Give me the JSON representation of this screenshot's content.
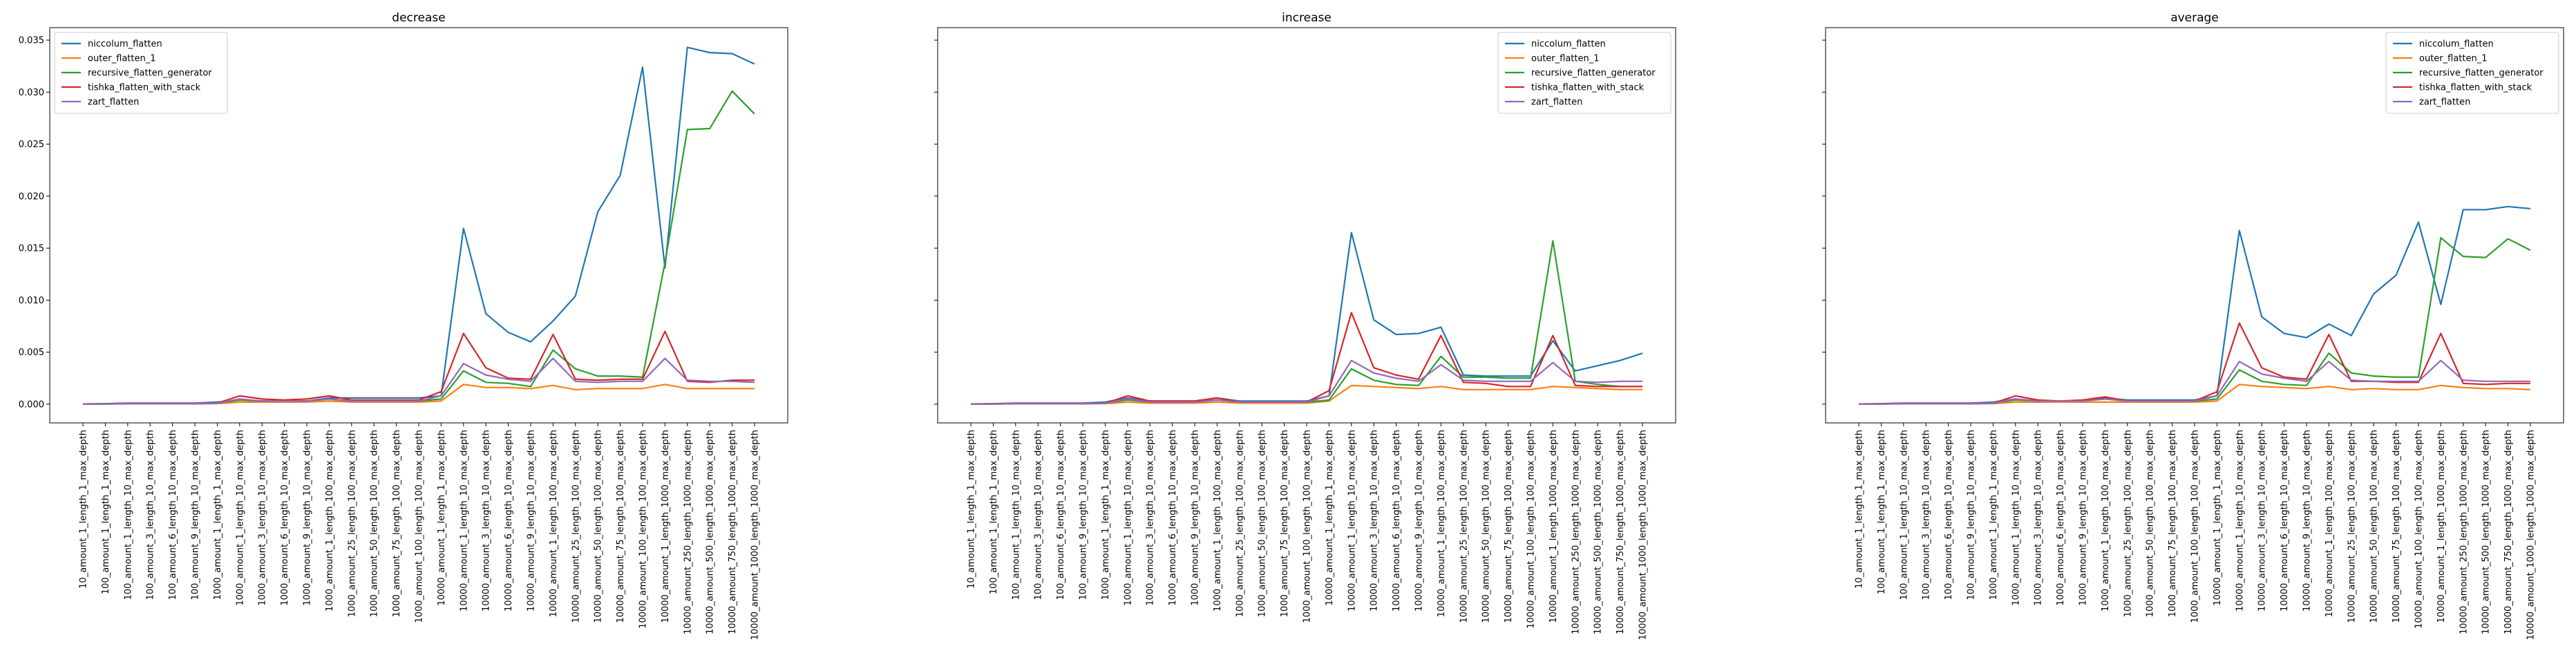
{
  "chart_data": [
    {
      "type": "line",
      "title": "decrease",
      "xlabel": "",
      "ylabel": "",
      "ylim": [
        -0.0018,
        0.0362
      ],
      "yticks": [
        "0.000",
        "0.005",
        "0.010",
        "0.015",
        "0.020",
        "0.025",
        "0.030",
        "0.035"
      ],
      "show_yticklabels": true,
      "legend": "top-left",
      "categories": [
        "10_amount_1_length_1_max_depth",
        "100_amount_1_length_1_max_depth",
        "100_amount_1_length_10_max_depth",
        "100_amount_3_length_10_max_depth",
        "100_amount_6_length_10_max_depth",
        "100_amount_9_length_10_max_depth",
        "1000_amount_1_length_1_max_depth",
        "1000_amount_1_length_10_max_depth",
        "1000_amount_3_length_10_max_depth",
        "1000_amount_6_length_10_max_depth",
        "1000_amount_9_length_10_max_depth",
        "1000_amount_1_length_100_max_depth",
        "1000_amount_25_length_100_max_depth",
        "1000_amount_50_length_100_max_depth",
        "1000_amount_75_length_100_max_depth",
        "1000_amount_100_length_100_max_depth",
        "10000_amount_1_length_1_max_depth",
        "10000_amount_1_length_10_max_depth",
        "10000_amount_3_length_10_max_depth",
        "10000_amount_6_length_10_max_depth",
        "10000_amount_9_length_10_max_depth",
        "10000_amount_1_length_100_max_depth",
        "10000_amount_25_length_100_max_depth",
        "10000_amount_50_length_100_max_depth",
        "10000_amount_75_length_100_max_depth",
        "10000_amount_100_length_100_max_depth",
        "10000_amount_1_length_1000_max_depth",
        "10000_amount_250_length_1000_max_depth",
        "10000_amount_500_length_1000_max_depth",
        "10000_amount_750_length_1000_max_depth",
        "10000_amount_1000_length_1000_max_depth"
      ],
      "series": [
        {
          "name": "niccolum_flatten",
          "color": "#1f77b4",
          "values": [
            2e-05,
            5e-05,
            0.0001,
            0.0001,
            0.0001,
            0.0001,
            0.0002,
            0.0004,
            0.0003,
            0.0003,
            0.0003,
            0.0006,
            0.0006,
            0.0006,
            0.0006,
            0.0006,
            0.0008,
            0.0169,
            0.0087,
            0.0069,
            0.006,
            0.008,
            0.0104,
            0.0185,
            0.022,
            0.0324,
            0.0131,
            0.0343,
            0.0338,
            0.0337,
            0.0327
          ]
        },
        {
          "name": "outer_flatten_1",
          "color": "#ff7f0e",
          "values": [
            1e-05,
            2e-05,
            3e-05,
            3e-05,
            3e-05,
            3e-05,
            5e-05,
            0.0002,
            0.0002,
            0.0002,
            0.0002,
            0.0003,
            0.0002,
            0.0002,
            0.0002,
            0.0002,
            0.0003,
            0.0019,
            0.0016,
            0.0016,
            0.0015,
            0.0018,
            0.0014,
            0.0015,
            0.0015,
            0.0015,
            0.0019,
            0.0015,
            0.0015,
            0.0015,
            0.0015
          ]
        },
        {
          "name": "recursive_flatten_generator",
          "color": "#2ca02c",
          "values": [
            1e-05,
            2e-05,
            5e-05,
            5e-05,
            5e-05,
            5e-05,
            0.0001,
            0.0004,
            0.0003,
            0.0003,
            0.0003,
            0.0005,
            0.0003,
            0.0003,
            0.0003,
            0.0003,
            0.0005,
            0.0032,
            0.0021,
            0.002,
            0.0017,
            0.0052,
            0.0034,
            0.0027,
            0.0027,
            0.0026,
            0.0136,
            0.0264,
            0.0265,
            0.0301,
            0.0279
          ]
        },
        {
          "name": "tishka_flatten_with_stack",
          "color": "#d62728",
          "values": [
            1e-05,
            3e-05,
            7e-05,
            7e-05,
            7e-05,
            7e-05,
            0.0001,
            0.0008,
            0.0005,
            0.0004,
            0.0005,
            0.0008,
            0.0004,
            0.0004,
            0.0004,
            0.0004,
            0.0012,
            0.0068,
            0.0035,
            0.0025,
            0.0024,
            0.0067,
            0.0024,
            0.0023,
            0.0024,
            0.0024,
            0.007,
            0.0022,
            0.0021,
            0.0023,
            0.0023
          ]
        },
        {
          "name": "zart_flatten",
          "color": "#9467bd",
          "values": [
            1e-05,
            2e-05,
            5e-05,
            5e-05,
            5e-05,
            5e-05,
            0.0001,
            0.0005,
            0.0003,
            0.0003,
            0.0003,
            0.0005,
            0.0003,
            0.0003,
            0.0003,
            0.0003,
            0.0008,
            0.0039,
            0.0028,
            0.0024,
            0.0022,
            0.0044,
            0.0022,
            0.0021,
            0.0022,
            0.0022,
            0.0044,
            0.0023,
            0.0022,
            0.0022,
            0.0021
          ]
        }
      ]
    },
    {
      "type": "line",
      "title": "increase",
      "xlabel": "",
      "ylabel": "",
      "ylim": [
        -0.0018,
        0.0362
      ],
      "yticks": [
        "0.000",
        "0.005",
        "0.010",
        "0.015",
        "0.020",
        "0.025",
        "0.030",
        "0.035"
      ],
      "show_yticklabels": false,
      "legend": "top-right",
      "categories": [
        "10_amount_1_length_1_max_depth",
        "100_amount_1_length_1_max_depth",
        "100_amount_1_length_10_max_depth",
        "100_amount_3_length_10_max_depth",
        "100_amount_6_length_10_max_depth",
        "100_amount_9_length_10_max_depth",
        "1000_amount_1_length_1_max_depth",
        "1000_amount_1_length_10_max_depth",
        "1000_amount_3_length_10_max_depth",
        "1000_amount_6_length_10_max_depth",
        "1000_amount_9_length_10_max_depth",
        "1000_amount_1_length_100_max_depth",
        "1000_amount_25_length_100_max_depth",
        "1000_amount_50_length_100_max_depth",
        "1000_amount_75_length_100_max_depth",
        "1000_amount_100_length_100_max_depth",
        "10000_amount_1_length_1_max_depth",
        "10000_amount_1_length_10_max_depth",
        "10000_amount_3_length_10_max_depth",
        "10000_amount_6_length_10_max_depth",
        "10000_amount_9_length_10_max_depth",
        "10000_amount_1_length_100_max_depth",
        "10000_amount_25_length_100_max_depth",
        "10000_amount_50_length_100_max_depth",
        "10000_amount_75_length_100_max_depth",
        "10000_amount_100_length_100_max_depth",
        "10000_amount_1_length_1000_max_depth",
        "10000_amount_250_length_1000_max_depth",
        "10000_amount_500_length_1000_max_depth",
        "10000_amount_750_length_1000_max_depth",
        "10000_amount_1000_length_1000_max_depth"
      ],
      "series": [
        {
          "name": "niccolum_flatten",
          "color": "#1f77b4",
          "values": [
            2e-05,
            5e-05,
            0.0001,
            0.0001,
            0.0001,
            0.0001,
            0.0002,
            0.0006,
            0.0003,
            0.0003,
            0.0003,
            0.0006,
            0.0003,
            0.0003,
            0.0003,
            0.0003,
            0.0008,
            0.0165,
            0.0081,
            0.0067,
            0.0068,
            0.0074,
            0.0028,
            0.0027,
            0.0027,
            0.0027,
            0.0061,
            0.0032,
            0.0037,
            0.0042,
            0.0049
          ]
        },
        {
          "name": "outer_flatten_1",
          "color": "#ff7f0e",
          "values": [
            1e-05,
            2e-05,
            3e-05,
            3e-05,
            3e-05,
            3e-05,
            5e-05,
            0.0002,
            0.0001,
            0.0001,
            0.0001,
            0.0002,
            0.0001,
            0.0001,
            0.0001,
            0.0001,
            0.0003,
            0.0018,
            0.0017,
            0.0016,
            0.0015,
            0.0017,
            0.0014,
            0.0014,
            0.0014,
            0.0014,
            0.0017,
            0.0016,
            0.0015,
            0.0014,
            0.0014
          ]
        },
        {
          "name": "recursive_flatten_generator",
          "color": "#2ca02c",
          "values": [
            1e-05,
            2e-05,
            5e-05,
            5e-05,
            5e-05,
            5e-05,
            0.0001,
            0.0004,
            0.0002,
            0.0002,
            0.0002,
            0.0004,
            0.0002,
            0.0002,
            0.0002,
            0.0002,
            0.0004,
            0.0034,
            0.0023,
            0.0019,
            0.0018,
            0.0046,
            0.0026,
            0.0026,
            0.0025,
            0.0025,
            0.0157,
            0.0022,
            0.0019,
            0.0017,
            0.0017
          ]
        },
        {
          "name": "tishka_flatten_with_stack",
          "color": "#d62728",
          "values": [
            1e-05,
            3e-05,
            7e-05,
            7e-05,
            7e-05,
            7e-05,
            0.0001,
            0.0008,
            0.0003,
            0.0003,
            0.0003,
            0.0006,
            0.0002,
            0.0002,
            0.0002,
            0.0002,
            0.0013,
            0.0088,
            0.0035,
            0.0028,
            0.0024,
            0.0066,
            0.0021,
            0.002,
            0.0017,
            0.0017,
            0.0066,
            0.0018,
            0.0017,
            0.0017,
            0.0017
          ]
        },
        {
          "name": "zart_flatten",
          "color": "#9467bd",
          "values": [
            1e-05,
            2e-05,
            5e-05,
            5e-05,
            5e-05,
            5e-05,
            0.0001,
            0.0005,
            0.0002,
            0.0002,
            0.0002,
            0.0004,
            0.0002,
            0.0002,
            0.0002,
            0.0002,
            0.0008,
            0.0042,
            0.003,
            0.0025,
            0.0022,
            0.0038,
            0.0023,
            0.0022,
            0.0022,
            0.0022,
            0.004,
            0.0022,
            0.0021,
            0.0022,
            0.0022
          ]
        }
      ]
    },
    {
      "type": "line",
      "title": "average",
      "xlabel": "",
      "ylabel": "",
      "ylim": [
        -0.0018,
        0.0362
      ],
      "yticks": [
        "0.000",
        "0.005",
        "0.010",
        "0.015",
        "0.020",
        "0.025",
        "0.030",
        "0.035"
      ],
      "show_yticklabels": false,
      "legend": "top-right",
      "categories": [
        "10_amount_1_length_1_max_depth",
        "100_amount_1_length_1_max_depth",
        "100_amount_1_length_10_max_depth",
        "100_amount_3_length_10_max_depth",
        "100_amount_6_length_10_max_depth",
        "100_amount_9_length_10_max_depth",
        "1000_amount_1_length_1_max_depth",
        "1000_amount_1_length_10_max_depth",
        "1000_amount_3_length_10_max_depth",
        "1000_amount_6_length_10_max_depth",
        "1000_amount_9_length_10_max_depth",
        "1000_amount_1_length_100_max_depth",
        "1000_amount_25_length_100_max_depth",
        "1000_amount_50_length_100_max_depth",
        "1000_amount_75_length_100_max_depth",
        "1000_amount_100_length_100_max_depth",
        "10000_amount_1_length_1_max_depth",
        "10000_amount_1_length_10_max_depth",
        "10000_amount_3_length_10_max_depth",
        "10000_amount_6_length_10_max_depth",
        "10000_amount_9_length_10_max_depth",
        "10000_amount_1_length_100_max_depth",
        "10000_amount_25_length_100_max_depth",
        "10000_amount_50_length_100_max_depth",
        "10000_amount_75_length_100_max_depth",
        "10000_amount_100_length_100_max_depth",
        "10000_amount_1_length_1000_max_depth",
        "10000_amount_250_length_1000_max_depth",
        "10000_amount_500_length_1000_max_depth",
        "10000_amount_750_length_1000_max_depth",
        "10000_amount_1000_length_1000_max_depth"
      ],
      "series": [
        {
          "name": "niccolum_flatten",
          "color": "#1f77b4",
          "values": [
            2e-05,
            5e-05,
            0.0001,
            0.0001,
            0.0001,
            0.0001,
            0.0002,
            0.0005,
            0.0003,
            0.0003,
            0.0003,
            0.0006,
            0.0004,
            0.0004,
            0.0004,
            0.0004,
            0.0008,
            0.0167,
            0.0084,
            0.0068,
            0.0064,
            0.0077,
            0.0066,
            0.0106,
            0.0124,
            0.0175,
            0.0096,
            0.0187,
            0.0187,
            0.019,
            0.0188
          ]
        },
        {
          "name": "outer_flatten_1",
          "color": "#ff7f0e",
          "values": [
            1e-05,
            2e-05,
            3e-05,
            3e-05,
            3e-05,
            3e-05,
            5e-05,
            0.0002,
            0.0002,
            0.0002,
            0.0002,
            0.0002,
            0.0002,
            0.0002,
            0.0002,
            0.0002,
            0.0003,
            0.0019,
            0.0017,
            0.0016,
            0.0015,
            0.0017,
            0.0014,
            0.0015,
            0.0014,
            0.0014,
            0.0018,
            0.0016,
            0.0015,
            0.0015,
            0.0014
          ]
        },
        {
          "name": "recursive_flatten_generator",
          "color": "#2ca02c",
          "values": [
            1e-05,
            2e-05,
            5e-05,
            5e-05,
            5e-05,
            5e-05,
            0.0001,
            0.0004,
            0.0003,
            0.0003,
            0.0003,
            0.0005,
            0.0003,
            0.0003,
            0.0003,
            0.0003,
            0.0005,
            0.0033,
            0.0022,
            0.0019,
            0.0018,
            0.0049,
            0.003,
            0.0027,
            0.0026,
            0.0026,
            0.016,
            0.0142,
            0.0141,
            0.0159,
            0.0148
          ]
        },
        {
          "name": "tishka_flatten_with_stack",
          "color": "#d62728",
          "values": [
            1e-05,
            3e-05,
            7e-05,
            7e-05,
            7e-05,
            7e-05,
            0.0001,
            0.0008,
            0.0004,
            0.0003,
            0.0004,
            0.0007,
            0.0003,
            0.0003,
            0.0003,
            0.0003,
            0.0012,
            0.0078,
            0.0035,
            0.0026,
            0.0024,
            0.0067,
            0.0022,
            0.0022,
            0.0021,
            0.0021,
            0.0068,
            0.002,
            0.0019,
            0.002,
            0.002
          ]
        },
        {
          "name": "zart_flatten",
          "color": "#9467bd",
          "values": [
            1e-05,
            2e-05,
            5e-05,
            5e-05,
            5e-05,
            5e-05,
            0.0001,
            0.0005,
            0.0003,
            0.0003,
            0.0003,
            0.0005,
            0.0003,
            0.0003,
            0.0003,
            0.0003,
            0.0008,
            0.0041,
            0.0029,
            0.0025,
            0.0022,
            0.0041,
            0.0023,
            0.0022,
            0.0022,
            0.0022,
            0.0042,
            0.0023,
            0.0022,
            0.0022,
            0.0022
          ]
        }
      ]
    }
  ]
}
